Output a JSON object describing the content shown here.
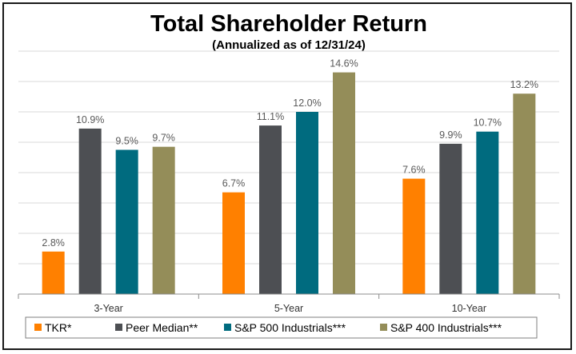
{
  "chart_data": {
    "type": "bar",
    "title": "Total Shareholder Return",
    "subtitle": "(Annualized as of 12/31/24)",
    "xlabel": "",
    "ylabel": "",
    "ylim": [
      0,
      16
    ],
    "grid": true,
    "legend_position": "bottom",
    "categories": [
      "3-Year",
      "5-Year",
      "10-Year"
    ],
    "series": [
      {
        "name": "TKR*",
        "color": "#FF8000",
        "values": [
          2.8,
          6.7,
          7.6
        ],
        "labels": [
          "2.8%",
          "6.7%",
          "7.6%"
        ]
      },
      {
        "name": "Peer Median**",
        "color": "#4D4F53",
        "values": [
          10.9,
          11.1,
          9.9
        ],
        "labels": [
          "10.9%",
          "11.1%",
          "9.9%"
        ]
      },
      {
        "name": "S&P 500 Industrials***",
        "color": "#006B7F",
        "values": [
          9.5,
          12.0,
          10.7
        ],
        "labels": [
          "9.5%",
          "12.0%",
          "10.7%"
        ]
      },
      {
        "name": "S&P 400 Industrials***",
        "color": "#948D59",
        "values": [
          9.7,
          14.6,
          13.2
        ],
        "labels": [
          "9.7%",
          "14.6%",
          "13.2%"
        ]
      }
    ]
  }
}
